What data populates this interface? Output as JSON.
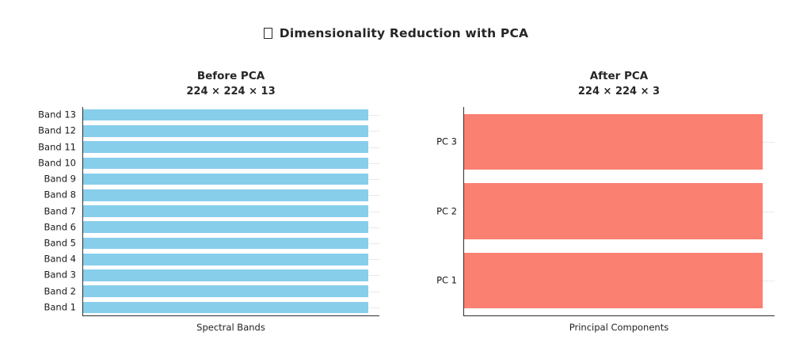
{
  "figure": {
    "title": "Dimensionality Reduction with PCA",
    "title_icon": "missing-glyph-box"
  },
  "colors": {
    "before_bar": "#87CEEB",
    "after_bar": "#FA8072",
    "axis": "#2f2f2f",
    "grid": "#d6d6d6",
    "text": "#262626"
  },
  "chart_data": [
    {
      "type": "bar",
      "orientation": "horizontal",
      "title": "Before PCA",
      "subtitle": "224 × 224 × 13",
      "xlabel": "Spectral Bands",
      "categories": [
        "Band 1",
        "Band 2",
        "Band 3",
        "Band 4",
        "Band 5",
        "Band 6",
        "Band 7",
        "Band 8",
        "Band 9",
        "Band 10",
        "Band 11",
        "Band 12",
        "Band 13"
      ],
      "values": [
        1,
        1,
        1,
        1,
        1,
        1,
        1,
        1,
        1,
        1,
        1,
        1,
        1
      ],
      "xlim": [
        0,
        1.04
      ],
      "bar_color": "#87CEEB",
      "grid": true,
      "legend": false
    },
    {
      "type": "bar",
      "orientation": "horizontal",
      "title": "After PCA",
      "subtitle": "224 × 224 × 3",
      "xlabel": "Principal Components",
      "categories": [
        "PC 1",
        "PC 2",
        "PC 3"
      ],
      "values": [
        1,
        1,
        1
      ],
      "xlim": [
        0,
        1.04
      ],
      "bar_color": "#FA8072",
      "grid": true,
      "legend": false
    }
  ]
}
